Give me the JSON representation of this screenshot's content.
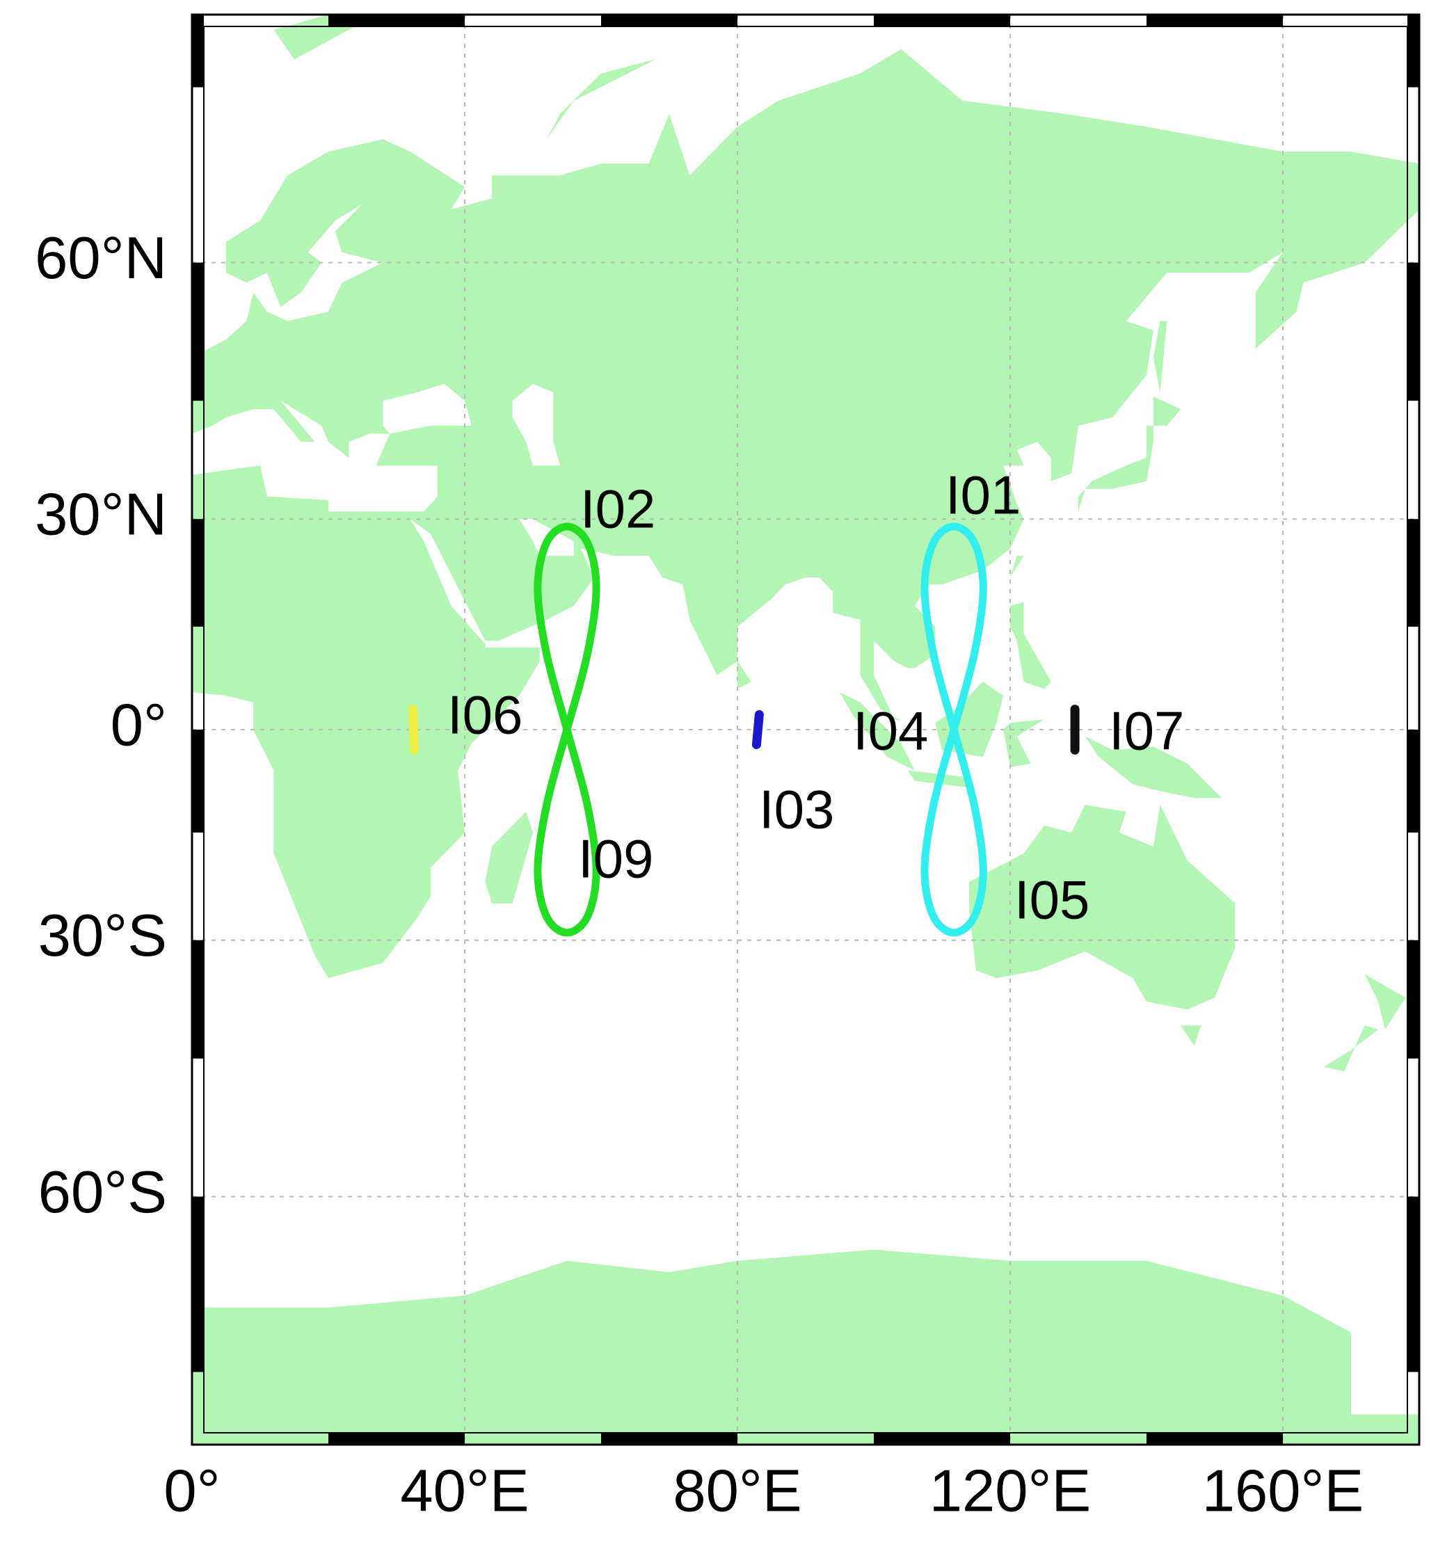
{
  "chart_data": {
    "type": "map",
    "xlim": [
      0,
      180
    ],
    "ylim": [
      -80,
      80
    ],
    "xticks": [
      {
        "value": 0,
        "label": "0°"
      },
      {
        "value": 40,
        "label": "40°E"
      },
      {
        "value": 80,
        "label": "80°E"
      },
      {
        "value": 120,
        "label": "120°E"
      },
      {
        "value": 160,
        "label": "160°E"
      }
    ],
    "yticks": [
      {
        "value": -60,
        "label": "60°S"
      },
      {
        "value": -30,
        "label": "30°S"
      },
      {
        "value": 0,
        "label": "0°"
      },
      {
        "value": 30,
        "label": "30°N"
      },
      {
        "value": 60,
        "label": "60°N"
      }
    ],
    "grid": true,
    "land_color": "#b3f5b3",
    "tracks": [
      {
        "color": "#22dd22",
        "x": [
          55,
          58,
          59.3,
          58,
          55,
          52,
          50.7,
          52,
          55,
          58,
          59.3,
          58,
          55,
          52,
          50.7,
          52,
          55
        ],
        "y": [
          0,
          11.1,
          20.5,
          26.8,
          29,
          26.8,
          20.5,
          11.1,
          0,
          -11.1,
          -20.5,
          -26.8,
          -29,
          -26.8,
          -20.5,
          -11.1,
          0
        ]
      },
      {
        "color": "#33eeee",
        "x": [
          111.75,
          114.75,
          116.05,
          114.75,
          111.75,
          108.75,
          107.45,
          108.75,
          111.75,
          114.75,
          116.05,
          114.75,
          111.75,
          108.75,
          107.45,
          108.75,
          111.75
        ],
        "y": [
          0,
          11.1,
          20.5,
          26.8,
          29,
          26.8,
          20.5,
          11.1,
          0,
          -11.1,
          -20.5,
          -26.8,
          -29,
          -26.8,
          -20.5,
          -11.1,
          0
        ]
      },
      {
        "color": "#eeee44",
        "x": [
          32.4,
          32.6
        ],
        "y": [
          3,
          -3
        ]
      },
      {
        "color": "#1a1acc",
        "x": [
          83.2,
          82.8
        ],
        "y": [
          2.2,
          -2.2
        ]
      },
      {
        "color": "#111111",
        "x": [
          129.5,
          129.5
        ],
        "y": [
          3,
          -3
        ]
      }
    ],
    "annotations": [
      "I01",
      "I02",
      "I03",
      "I04",
      "I05",
      "I06",
      "I07",
      "I09"
    ]
  }
}
